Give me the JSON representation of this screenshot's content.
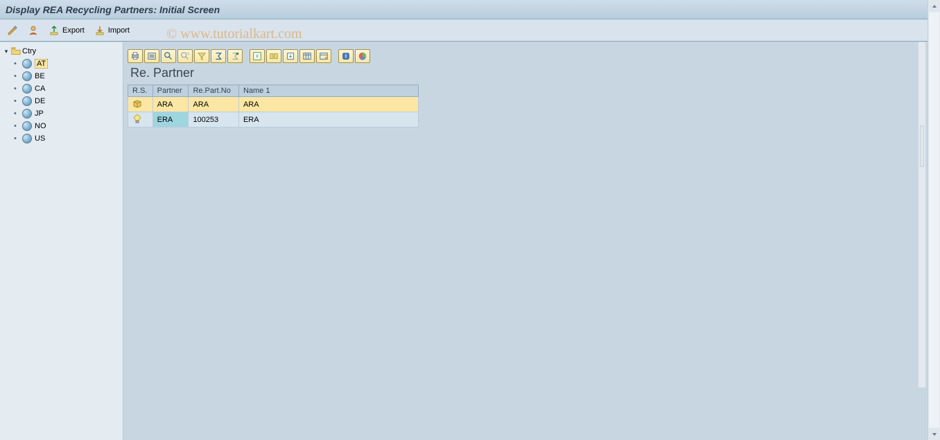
{
  "title": "Display REA Recycling Partners: Initial Screen",
  "watermark": "© www.tutorialkart.com",
  "toolbar": {
    "export_label": "Export",
    "import_label": "Import"
  },
  "sidebar": {
    "root_label": "Ctry",
    "items": [
      {
        "code": "AT",
        "selected": true
      },
      {
        "code": "BE",
        "selected": false
      },
      {
        "code": "CA",
        "selected": false
      },
      {
        "code": "DE",
        "selected": false
      },
      {
        "code": "JP",
        "selected": false
      },
      {
        "code": "NO",
        "selected": false
      },
      {
        "code": "US",
        "selected": false
      }
    ]
  },
  "panel": {
    "title": "Re. Partner",
    "columns": [
      "R.S.",
      "Partner",
      "Re.Part.No",
      "Name 1"
    ],
    "rows": [
      {
        "rs_icon": "box",
        "partner": "ARA",
        "repartno": "ARA",
        "name1": "ARA",
        "state": "selected"
      },
      {
        "rs_icon": "bulb",
        "partner": "ERA",
        "repartno": "100253",
        "name1": "ERA",
        "state": "alt"
      }
    ]
  },
  "alv_icons": [
    "print",
    "detail",
    "find",
    "find-next",
    "filter",
    "sum",
    "subtotal",
    "",
    "export-xls",
    "views",
    "export",
    "layout",
    "change-layout",
    "",
    "info",
    "chart"
  ],
  "colors": {
    "title_grad_top": "#cfdde9",
    "title_grad_bot": "#b8cddd",
    "toolbar_bg": "#d8e3ed",
    "sidebar_bg": "#e4ebf1",
    "content_bg": "#c8d6e2",
    "selected_bg": "#fbe7a3",
    "alt_row_bg": "#d7e5ef",
    "header_bg": "#bfd0df",
    "partner_sel_bg": "#9ed6e0",
    "alv_btn_top": "#fdf5d6",
    "alv_btn_bot": "#f6e7a6",
    "border": "#97abbe"
  }
}
